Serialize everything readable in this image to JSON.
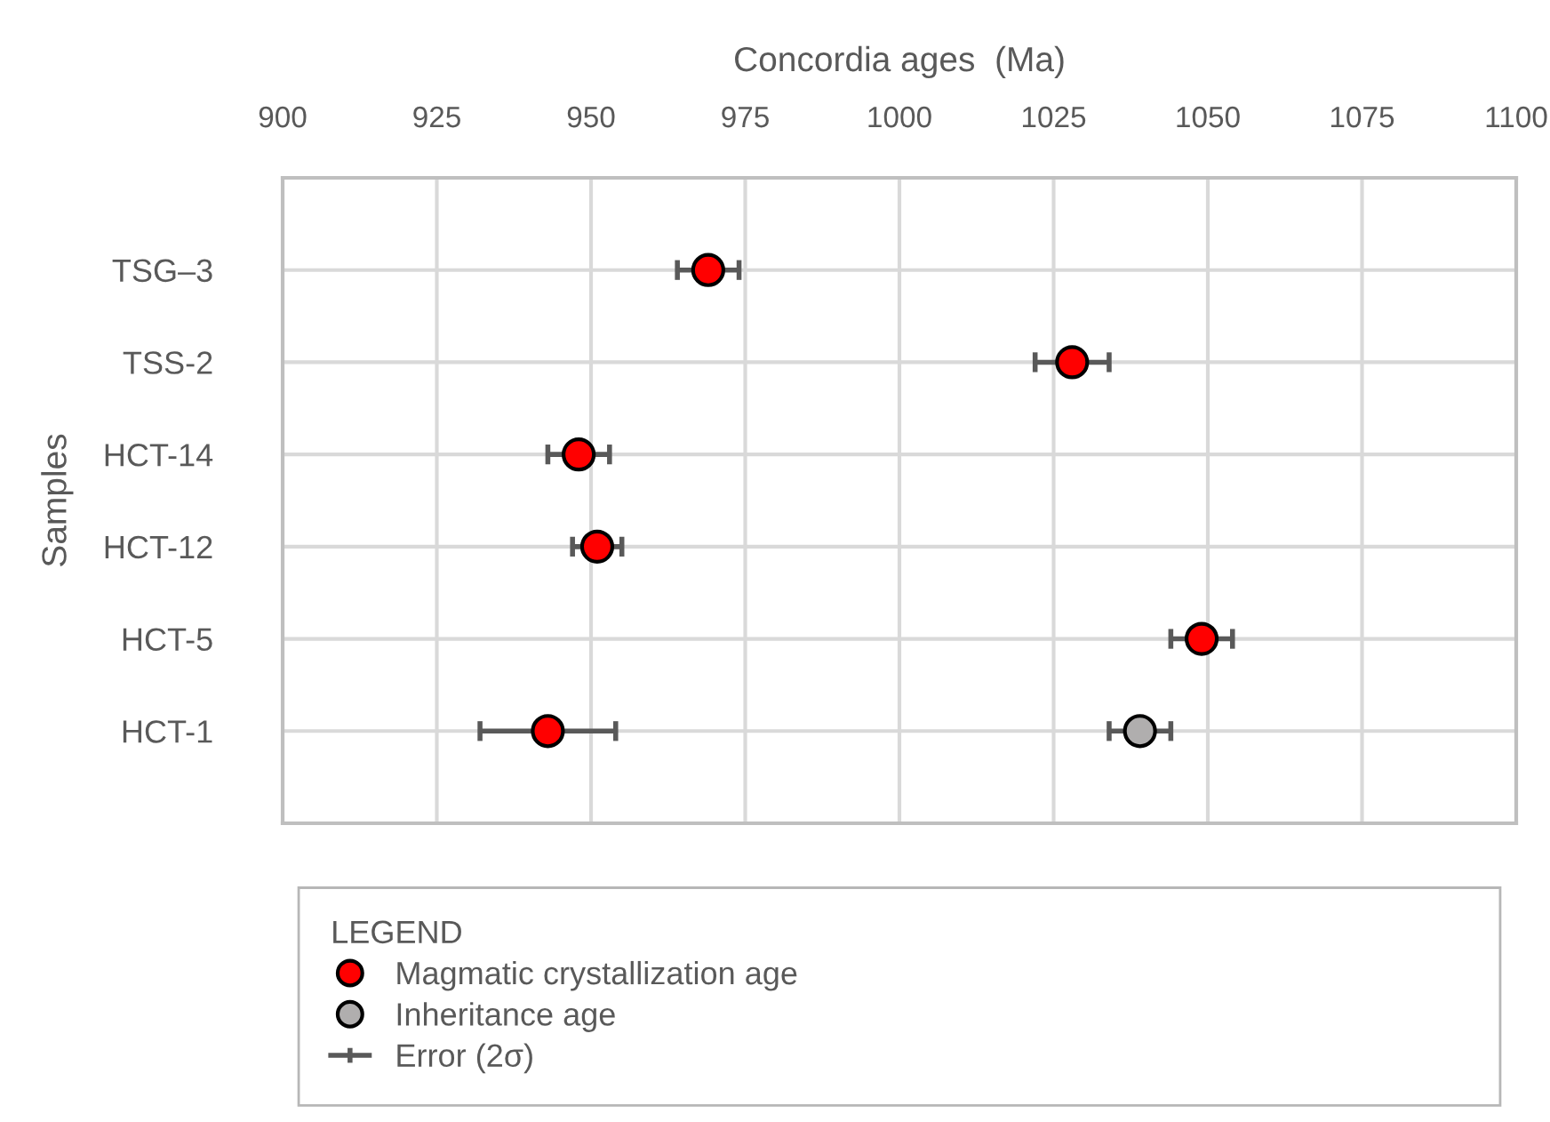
{
  "chart_data": {
    "type": "scatter",
    "orientation": "horizontal",
    "xlabel": "Concordia ages  (Ma)",
    "ylabel": "Samples",
    "legend_title": "LEGEND",
    "categories": [
      "TSG–3",
      "TSS-2",
      "HCT-14",
      "HCT-12",
      "HCT-5",
      "HCT-1"
    ],
    "series": [
      {
        "name": "Magmatic crystallization age",
        "color": "#ff0000",
        "values": [
          969,
          1028,
          948,
          951,
          1049,
          943
        ],
        "errors": [
          5,
          6,
          5,
          4,
          5,
          11
        ]
      },
      {
        "name": "Inheritance age",
        "color": "#b0aeae",
        "values": [
          null,
          null,
          null,
          null,
          null,
          1039
        ],
        "errors": [
          null,
          null,
          null,
          null,
          null,
          5
        ]
      }
    ],
    "annotations": [
      "Error (2σ)"
    ],
    "xlim": [
      900,
      1100
    ],
    "xticks": [
      900,
      925,
      950,
      975,
      1000,
      1025,
      1050,
      1075,
      1100
    ],
    "grid": true,
    "legend": "bottom",
    "marker": "circle"
  }
}
